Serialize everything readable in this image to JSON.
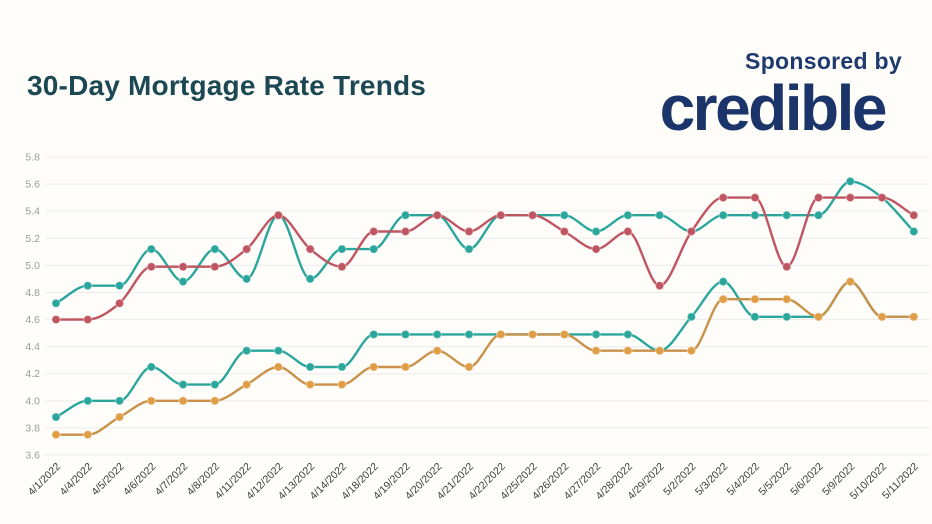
{
  "header": {
    "title": "30-Day Mortgage Rate Trends",
    "sponsored_by": "Sponsored by",
    "brand": "credible"
  },
  "colors": {
    "background": "#fffdfa",
    "title_text": "#1b4852",
    "brand_navy": "#1b3469",
    "sponsored_text": "#1e3a6e",
    "grid": "#ececec",
    "y_label": "#9b9b9b",
    "x_label": "#3c3c3c",
    "teal": "#2aa69c",
    "red": "#c05562",
    "orange_line": "#c9914a",
    "orange_dot": "#df9d45"
  },
  "chart_data": {
    "type": "line",
    "title": "30-Day Mortgage Rate Trends",
    "xlabel": "",
    "ylabel": "",
    "ylim": [
      3.6,
      5.8
    ],
    "y_ticks": [
      5.8,
      5.6,
      5.4,
      5.2,
      5.0,
      4.8,
      4.6,
      4.4,
      4.2,
      4.0,
      3.8,
      3.6
    ],
    "grid": true,
    "legend_position": "none",
    "marker": "circle",
    "curve": "smooth-monotone",
    "x": [
      "4/1/2022",
      "4/4/2022",
      "4/5/2022",
      "4/6/2022",
      "4/7/2022",
      "4/8/2022",
      "4/11/2022",
      "4/12/2022",
      "4/13/2022",
      "4/14/2022",
      "4/18/2022",
      "4/19/2022",
      "4/20/2022",
      "4/21/2022",
      "4/22/2022",
      "4/25/2022",
      "4/26/2022",
      "4/27/2022",
      "4/28/2022",
      "4/29/2022",
      "5/2/2022",
      "5/3/2022",
      "5/4/2022",
      "5/5/2022",
      "5/6/2022",
      "5/9/2022",
      "5/10/2022",
      "5/11/2022"
    ],
    "series": [
      {
        "name": "teal-upper",
        "color_key": "teal",
        "dot_color_key": "teal",
        "values": [
          4.72,
          4.85,
          4.85,
          5.12,
          4.88,
          5.12,
          4.9,
          5.37,
          4.9,
          5.12,
          5.12,
          5.37,
          5.37,
          5.12,
          5.37,
          5.37,
          5.37,
          5.25,
          5.37,
          5.37,
          5.25,
          5.37,
          5.37,
          5.37,
          5.37,
          5.62,
          5.5,
          5.25
        ]
      },
      {
        "name": "red",
        "color_key": "red",
        "dot_color_key": "red",
        "values": [
          4.6,
          4.6,
          4.72,
          4.99,
          4.99,
          4.99,
          5.12,
          5.37,
          5.12,
          4.99,
          5.25,
          5.25,
          5.37,
          5.25,
          5.37,
          5.37,
          5.25,
          5.12,
          5.25,
          4.85,
          5.25,
          5.5,
          5.5,
          4.99,
          5.5,
          5.5,
          5.5,
          5.37
        ]
      },
      {
        "name": "teal-lower",
        "color_key": "teal",
        "dot_color_key": "teal",
        "values": [
          3.88,
          4.0,
          4.0,
          4.25,
          4.12,
          4.12,
          4.37,
          4.37,
          4.25,
          4.25,
          4.49,
          4.49,
          4.49,
          4.49,
          4.49,
          4.49,
          4.49,
          4.49,
          4.49,
          4.37,
          4.62,
          4.88,
          4.62,
          4.62,
          4.62,
          4.88,
          4.62,
          4.62
        ]
      },
      {
        "name": "orange",
        "color_key": "orange_line",
        "dot_color_key": "orange_dot",
        "values": [
          3.75,
          3.75,
          3.88,
          4.0,
          4.0,
          4.0,
          4.12,
          4.25,
          4.12,
          4.12,
          4.25,
          4.25,
          4.37,
          4.25,
          4.49,
          4.49,
          4.49,
          4.37,
          4.37,
          4.37,
          4.37,
          4.75,
          4.75,
          4.75,
          4.62,
          4.88,
          4.62,
          4.62
        ]
      }
    ]
  }
}
